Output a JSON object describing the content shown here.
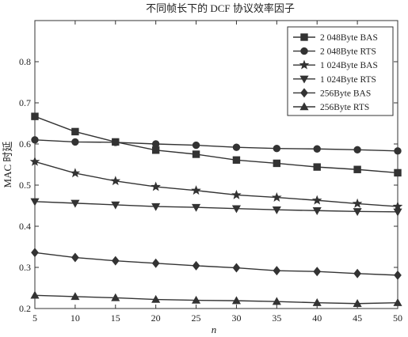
{
  "chart_data": {
    "type": "line",
    "title": "不同帧长下的 DCF 协议效率因子",
    "xlabel": "n",
    "ylabel": "MAC 时延",
    "x": [
      5,
      10,
      15,
      20,
      25,
      30,
      35,
      40,
      45,
      50
    ],
    "xlim": [
      5,
      50
    ],
    "ylim": [
      0.2,
      0.9
    ],
    "xticks": [
      "5",
      "10",
      "15",
      "20",
      "25",
      "30",
      "35",
      "40",
      "45",
      "50"
    ],
    "yticks": [
      "0.2",
      "0.3",
      "0.4",
      "0.5",
      "0.6",
      "0.7",
      "0.8"
    ],
    "grid": false,
    "legend_position": "top-right",
    "series": [
      {
        "name": "2 048Byte BAS",
        "marker": "square",
        "values": [
          0.667,
          0.63,
          0.605,
          0.585,
          0.575,
          0.561,
          0.553,
          0.544,
          0.538,
          0.53
        ]
      },
      {
        "name": "2 048Byte RTS",
        "marker": "circle",
        "values": [
          0.61,
          0.605,
          0.604,
          0.6,
          0.597,
          0.592,
          0.589,
          0.588,
          0.586,
          0.583
        ]
      },
      {
        "name": "1 024Byte BAS",
        "marker": "star",
        "values": [
          0.557,
          0.529,
          0.51,
          0.496,
          0.487,
          0.476,
          0.47,
          0.463,
          0.455,
          0.448
        ]
      },
      {
        "name": "1 024Byte RTS",
        "marker": "triangle-down",
        "values": [
          0.46,
          0.456,
          0.452,
          0.448,
          0.446,
          0.443,
          0.44,
          0.438,
          0.436,
          0.435
        ]
      },
      {
        "name": "256Byte BAS",
        "marker": "diamond",
        "values": [
          0.336,
          0.324,
          0.316,
          0.31,
          0.304,
          0.299,
          0.292,
          0.29,
          0.285,
          0.281
        ]
      },
      {
        "name": "256Byte RTS",
        "marker": "triangle-up",
        "values": [
          0.232,
          0.229,
          0.226,
          0.222,
          0.22,
          0.219,
          0.217,
          0.214,
          0.212,
          0.214
        ]
      }
    ]
  }
}
